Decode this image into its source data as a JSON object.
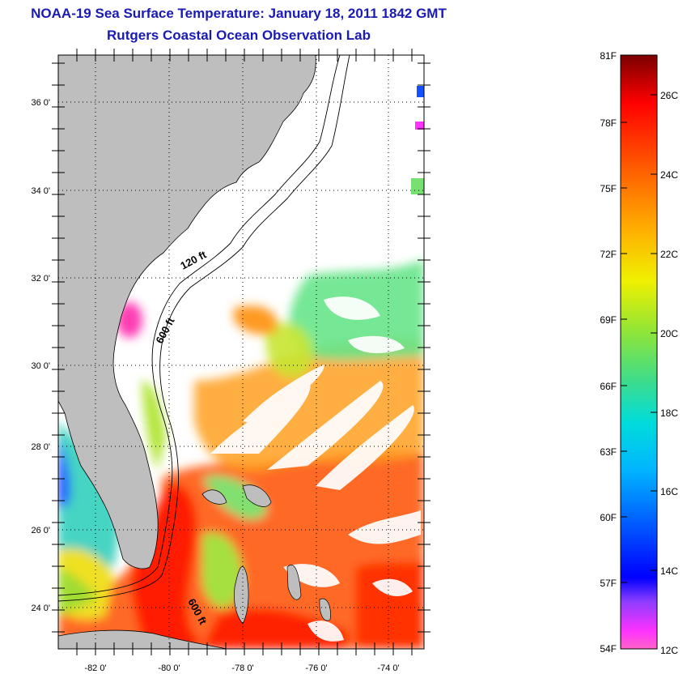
{
  "title": "NOAA-19 Sea Surface Temperature:  January 18, 2011 1842 GMT",
  "subtitle": "Rutgers Coastal Ocean Observation Lab",
  "map": {
    "lat_ticks": [
      "36 0'",
      "34 0'",
      "32 0'",
      "30 0'",
      "28 0'",
      "26 0'",
      "24 0'"
    ],
    "lon_ticks": [
      "-82 0'",
      "-80 0'",
      "-78 0'",
      "-76 0'",
      "-74 0'"
    ],
    "contour_labels": [
      "120 ft",
      "600 ft",
      "600 ft"
    ],
    "land_color": "#bebebe",
    "no_data_color": "#ffffff"
  },
  "colorbar": {
    "fahrenheit_labels": [
      "81F",
      "78F",
      "75F",
      "72F",
      "69F",
      "66F",
      "63F",
      "60F",
      "57F",
      "54F"
    ],
    "celsius_labels": [
      "26C",
      "24C",
      "22C",
      "20C",
      "18C",
      "16C",
      "14C",
      "12C"
    ],
    "colors": [
      "#7a0000",
      "#ff0000",
      "#ff6400",
      "#ffb400",
      "#f0f000",
      "#96e632",
      "#3cdc8c",
      "#00dcdc",
      "#00b4ff",
      "#0064ff",
      "#0000ff",
      "#8c3cff",
      "#ff32ff",
      "#ff64c8"
    ]
  }
}
